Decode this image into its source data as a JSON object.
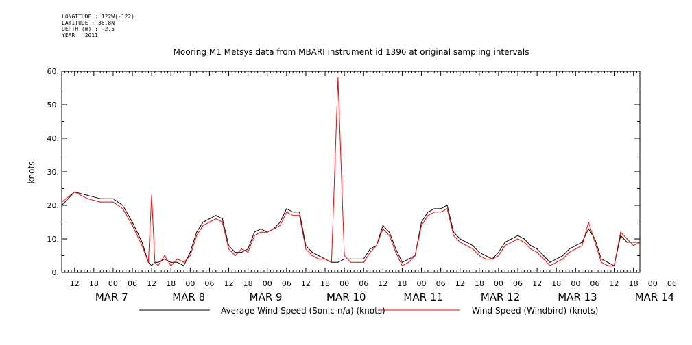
{
  "header": {
    "longitude": "LONGITUDE : 122W(-122)",
    "latitude": "LATITUDE : 36.8N",
    "depth": "DEPTH (m) : -2.5",
    "year": "YEAR : 2011"
  },
  "chart_data": {
    "type": "line",
    "title": "Mooring M1 Metsys data from MBARI instrument id 1396 at original sampling intervals",
    "ylabel": "knots",
    "xlabel": "",
    "ylim": [
      0,
      60
    ],
    "yticks": [
      "0.",
      "10.",
      "20.",
      "30.",
      "40.",
      "50.",
      "60."
    ],
    "x_range_hours": [
      -16,
      164
    ],
    "hour_ticks": [
      "12",
      "18",
      "00",
      "06",
      "12",
      "18",
      "00",
      "06",
      "12",
      "18",
      "00",
      "06",
      "12",
      "18",
      "00",
      "06",
      "12",
      "18",
      "00",
      "06",
      "12",
      "18",
      "00",
      "06",
      "12",
      "18",
      "00",
      "06",
      "12",
      "18",
      "00",
      "06"
    ],
    "date_labels": [
      "MAR  7",
      "MAR  8",
      "MAR  9",
      "MAR 10",
      "MAR 11",
      "MAR 12",
      "MAR 13",
      "MAR 14"
    ],
    "grid": false,
    "legend_position": "bottom",
    "series": [
      {
        "name": "Average Wind Speed (Sonic-n/a) (knots)",
        "color": "#000000",
        "x": [
          -16,
          -12,
          -8,
          -4,
          0,
          3,
          6,
          9,
          11,
          12,
          13,
          14,
          16,
          18,
          20,
          22,
          24,
          26,
          28,
          30,
          32,
          34,
          36,
          38,
          40,
          42,
          44,
          46,
          48,
          50,
          52,
          54,
          56,
          58,
          60,
          62,
          64,
          66,
          68,
          70,
          72,
          74,
          76,
          78,
          80,
          82,
          84,
          86,
          88,
          90,
          92,
          94,
          96,
          98,
          100,
          102,
          104,
          106,
          108,
          110,
          112,
          114,
          116,
          118,
          120,
          122,
          124,
          126,
          128,
          130,
          132,
          134,
          136,
          138,
          140,
          142,
          144,
          146,
          148,
          150,
          152,
          154,
          156,
          158,
          160,
          162,
          164
        ],
        "y": [
          20,
          24,
          23,
          22,
          22,
          20,
          15,
          9,
          3,
          2,
          3,
          3,
          4,
          3,
          3,
          2,
          6,
          12,
          15,
          16,
          17,
          16,
          8,
          6,
          6,
          7,
          12,
          13,
          12,
          13,
          15,
          19,
          18,
          18,
          8,
          6,
          5,
          4,
          3,
          3,
          4,
          4,
          4,
          4,
          7,
          8,
          14,
          12,
          7,
          3,
          4,
          5,
          15,
          18,
          19,
          19,
          20,
          12,
          10,
          9,
          8,
          6,
          5,
          4,
          6,
          9,
          10,
          11,
          10,
          8,
          7,
          5,
          3,
          4,
          5,
          7,
          8,
          9,
          13,
          10,
          4,
          3,
          2,
          11,
          9,
          9,
          9
        ]
      },
      {
        "name": "Wind Speed (Windbird) (knots)",
        "color": "#ff0000",
        "x": [
          -16,
          -12,
          -8,
          -4,
          0,
          3,
          6,
          9,
          11,
          12,
          13,
          14,
          16,
          18,
          20,
          22,
          24,
          26,
          28,
          30,
          32,
          34,
          36,
          38,
          40,
          42,
          44,
          46,
          48,
          50,
          52,
          54,
          56,
          58,
          60,
          62,
          64,
          66,
          68,
          70,
          72,
          74,
          76,
          78,
          80,
          82,
          84,
          86,
          88,
          90,
          92,
          94,
          96,
          98,
          100,
          102,
          104,
          106,
          108,
          110,
          112,
          114,
          116,
          118,
          120,
          122,
          124,
          126,
          128,
          130,
          132,
          134,
          136,
          138,
          140,
          142,
          144,
          146,
          148,
          150,
          152,
          154,
          156,
          158,
          160,
          162,
          164
        ],
        "y": [
          21,
          24,
          22,
          21,
          21,
          19,
          14,
          8,
          3,
          23,
          3,
          2,
          5,
          2,
          4,
          3,
          5,
          11,
          14,
          15,
          16,
          15,
          7,
          5,
          7,
          6,
          11,
          12,
          12,
          13,
          14,
          18,
          17,
          17,
          7,
          5,
          4,
          4,
          3,
          58,
          5,
          3,
          3,
          3,
          6,
          8,
          13,
          11,
          6,
          2,
          3,
          5,
          14,
          17,
          18,
          18,
          19,
          11,
          9,
          8,
          7,
          5,
          4,
          4,
          5,
          8,
          9,
          10,
          9,
          7,
          6,
          4,
          2,
          3,
          4,
          6,
          7,
          8,
          15,
          9,
          3,
          2,
          2,
          12,
          10,
          8,
          9
        ]
      }
    ]
  }
}
